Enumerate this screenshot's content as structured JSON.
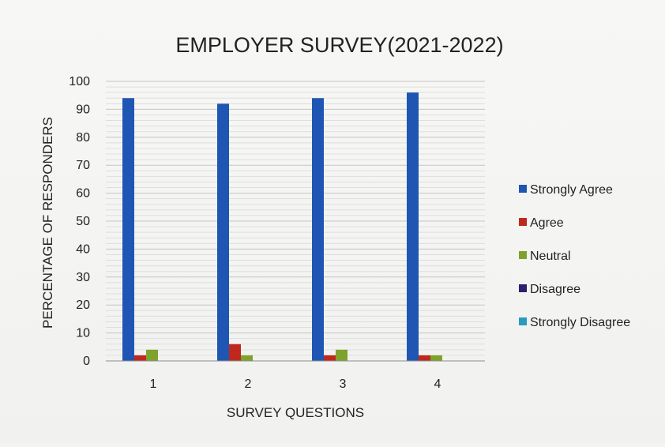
{
  "chart_data": {
    "type": "bar",
    "title": "EMPLOYER SURVEY(2021-2022)",
    "xlabel": "SURVEY QUESTIONS",
    "ylabel": "PERCENTAGE OF RESPONDERS",
    "categories": [
      "1",
      "2",
      "3",
      "4"
    ],
    "ylim": [
      0,
      100
    ],
    "yticks": [
      0,
      10,
      20,
      30,
      40,
      50,
      60,
      70,
      80,
      90,
      100
    ],
    "grid": true,
    "legend_position": "right",
    "series": [
      {
        "name": "Strongly Agree",
        "color": "#1f56b4",
        "values": [
          94,
          92,
          94,
          96
        ]
      },
      {
        "name": "Agree",
        "color": "#c0281e",
        "values": [
          2,
          6,
          2,
          2
        ]
      },
      {
        "name": "Neutral",
        "color": "#7ea22b",
        "values": [
          4,
          2,
          4,
          2
        ]
      },
      {
        "name": "Disagree",
        "color": "#2b1f6e",
        "values": [
          0,
          0,
          0,
          0
        ]
      },
      {
        "name": "Strongly Disagree",
        "color": "#2a9bbf",
        "values": [
          0,
          0,
          0,
          0
        ]
      }
    ]
  }
}
